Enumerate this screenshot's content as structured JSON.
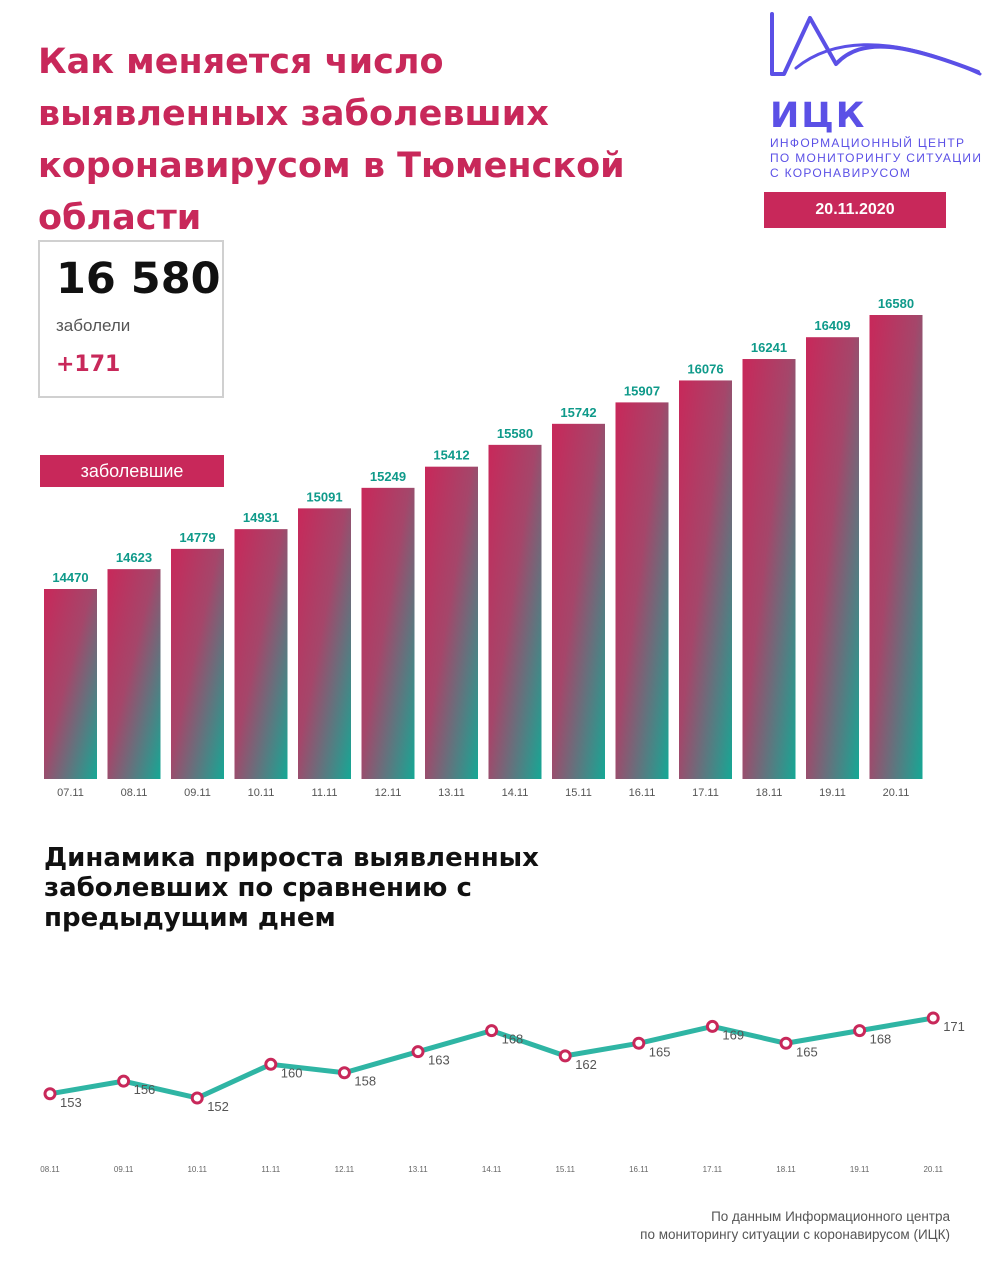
{
  "header": {
    "title": "Как меняется число выявленных заболевших коронавирусом в Тюменской области",
    "date": "20.11.2020"
  },
  "logo": {
    "name": "ИЦК",
    "subtitle": "ИНФОРМАЦИОННЫЙ ЦЕНТР ПО МОНИТОРИНГУ СИТУАЦИИ С КОРОНАВИРУСОМ",
    "color": "#5b50e6"
  },
  "kpi": {
    "value": "16 580",
    "label": "заболели",
    "delta": "+171"
  },
  "colors": {
    "accent": "#c8285a",
    "teal": "#15a895",
    "line_teal": "#2fb5a4",
    "label_teal": "#0f9a8a"
  },
  "chart_data": [
    {
      "type": "bar",
      "series_label": "заболевшие",
      "categories": [
        "07.11",
        "08.11",
        "09.11",
        "10.11",
        "11.11",
        "12.11",
        "13.11",
        "14.11",
        "15.11",
        "16.11",
        "17.11",
        "18.11",
        "19.11",
        "20.11"
      ],
      "values": [
        14470,
        14623,
        14779,
        14931,
        15091,
        15249,
        15412,
        15580,
        15742,
        15907,
        16076,
        16241,
        16409,
        16580
      ],
      "data_labels": [
        "14470",
        "14623",
        "14779",
        "14931",
        "15091",
        "15249",
        "15412",
        "15580",
        "15742",
        "15907",
        "16076",
        "16241",
        "16409",
        "16580"
      ]
    },
    {
      "type": "line",
      "title": "Динамика прироста выявленных заболевших по сравнению с предыдущим днем",
      "categories": [
        "08.11",
        "09.11",
        "10.11",
        "11.11",
        "12.11",
        "13.11",
        "14.11",
        "15.11",
        "16.11",
        "17.11",
        "18.11",
        "19.11",
        "20.11"
      ],
      "values": [
        153,
        156,
        152,
        160,
        158,
        163,
        168,
        162,
        165,
        169,
        165,
        168,
        171
      ],
      "data_labels": [
        "153",
        "156",
        "152",
        "160",
        "158",
        "163",
        "168",
        "162",
        "165",
        "169",
        "165",
        "168",
        "171"
      ]
    }
  ],
  "footer": {
    "source_line1": "По данным Информационного центра",
    "source_line2": "по мониторингу ситуации с коронавирусом (ИЦК)"
  }
}
